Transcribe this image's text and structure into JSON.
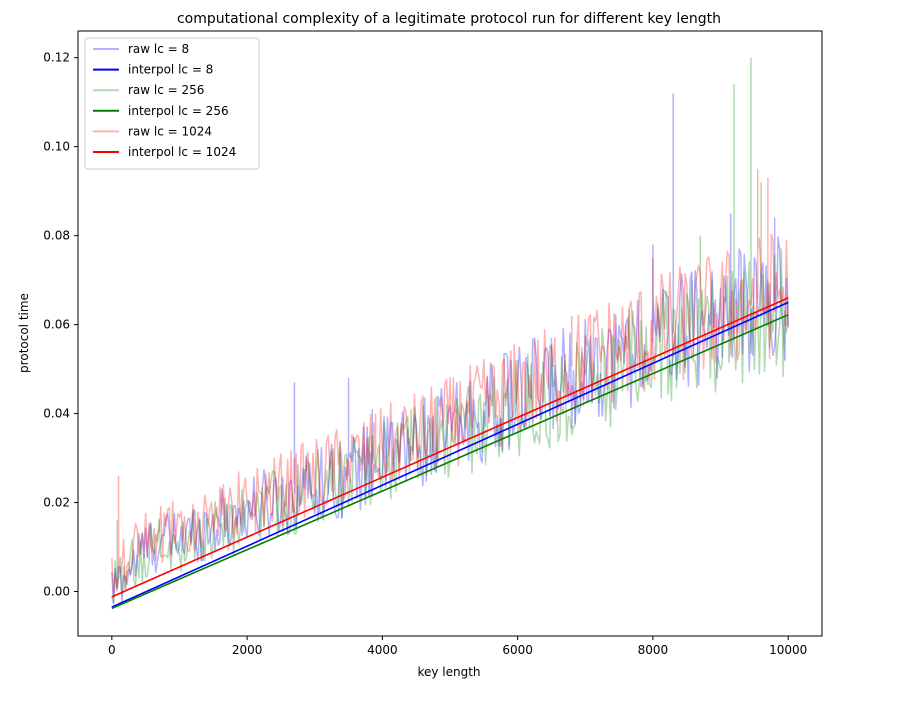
{
  "chart_data": {
    "type": "line",
    "title": "computational complexity of a legitimate protocol run for different key length",
    "xlabel": "key length",
    "ylabel": "protocol time",
    "xlim": [
      -500,
      10500
    ],
    "ylim": [
      -0.01,
      0.126
    ],
    "xticks": [
      0,
      2000,
      4000,
      6000,
      8000,
      10000
    ],
    "yticks": [
      0.0,
      0.02,
      0.04,
      0.06,
      0.08,
      0.1,
      0.12
    ],
    "xtick_labels": [
      "0",
      "2000",
      "4000",
      "6000",
      "8000",
      "10000"
    ],
    "ytick_labels": [
      "0.00",
      "0.02",
      "0.04",
      "0.06",
      "0.08",
      "0.10",
      "0.12"
    ],
    "grid": false,
    "legend_position": "top-left",
    "series": [
      {
        "name": "raw lc = 8",
        "kind": "raw",
        "color": "#0000ff",
        "opacity": 0.3,
        "points": [
          [
            0,
            0.0
          ],
          [
            500,
            0.01
          ],
          [
            1000,
            0.012
          ],
          [
            2000,
            0.018
          ],
          [
            2700,
            0.022
          ],
          [
            3000,
            0.024
          ],
          [
            3500,
            0.026
          ],
          [
            4000,
            0.03
          ],
          [
            5000,
            0.036
          ],
          [
            6000,
            0.044
          ],
          [
            7000,
            0.05
          ],
          [
            8000,
            0.056
          ],
          [
            8300,
            0.058
          ],
          [
            9000,
            0.062
          ],
          [
            10000,
            0.066
          ]
        ],
        "spikes": [
          [
            2700,
            0.047
          ],
          [
            3500,
            0.048
          ],
          [
            3850,
            0.041
          ],
          [
            8000,
            0.078
          ],
          [
            8300,
            0.112
          ],
          [
            9150,
            0.085
          ],
          [
            9800,
            0.084
          ]
        ]
      },
      {
        "name": "interpol lc = 8",
        "kind": "fit",
        "color": "#0000ff",
        "x": [
          0,
          10000
        ],
        "y": [
          -0.0035,
          0.065
        ]
      },
      {
        "name": "raw lc = 256",
        "kind": "raw",
        "color": "#008000",
        "opacity": 0.3,
        "points": [
          [
            0,
            0.0
          ],
          [
            500,
            0.009
          ],
          [
            1000,
            0.011
          ],
          [
            2000,
            0.017
          ],
          [
            3000,
            0.023
          ],
          [
            4000,
            0.029
          ],
          [
            5000,
            0.034
          ],
          [
            6000,
            0.041
          ],
          [
            7000,
            0.047
          ],
          [
            8000,
            0.053
          ],
          [
            9000,
            0.059
          ],
          [
            10000,
            0.063
          ]
        ],
        "spikes": [
          [
            80,
            0.016
          ],
          [
            4800,
            0.044
          ],
          [
            8700,
            0.08
          ],
          [
            9200,
            0.114
          ],
          [
            9450,
            0.12
          ],
          [
            9600,
            0.092
          ]
        ]
      },
      {
        "name": "interpol lc = 256",
        "kind": "fit",
        "color": "#008000",
        "x": [
          0,
          10000
        ],
        "y": [
          -0.0038,
          0.0622
        ]
      },
      {
        "name": "raw lc = 1024",
        "kind": "raw",
        "color": "#ff0000",
        "opacity": 0.3,
        "points": [
          [
            0,
            0.002
          ],
          [
            500,
            0.012
          ],
          [
            1000,
            0.014
          ],
          [
            2000,
            0.02
          ],
          [
            3000,
            0.026
          ],
          [
            4000,
            0.032
          ],
          [
            5000,
            0.038
          ],
          [
            6000,
            0.045
          ],
          [
            7000,
            0.052
          ],
          [
            8000,
            0.058
          ],
          [
            9000,
            0.063
          ],
          [
            10000,
            0.068
          ]
        ],
        "spikes": [
          [
            100,
            0.026
          ],
          [
            2700,
            0.03
          ],
          [
            3900,
            0.04
          ],
          [
            6800,
            0.062
          ],
          [
            8000,
            0.075
          ],
          [
            9550,
            0.095
          ],
          [
            9700,
            0.093
          ]
        ]
      },
      {
        "name": "interpol lc = 1024",
        "kind": "fit",
        "color": "#ff0000",
        "x": [
          0,
          10000
        ],
        "y": [
          -0.0012,
          0.066
        ]
      }
    ]
  }
}
